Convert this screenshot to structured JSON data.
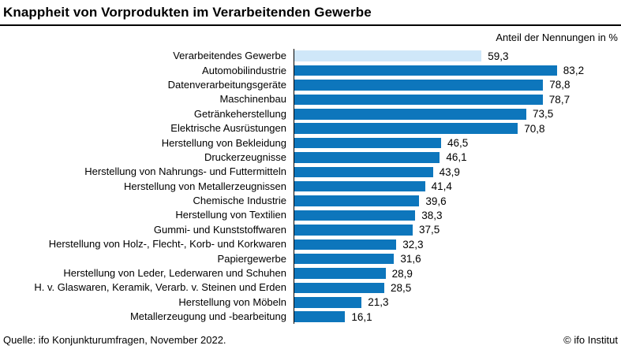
{
  "header": {
    "title": "Knappheit von Vorprodukten im Verarbeitenden Gewerbe"
  },
  "subtitle": "Anteil der Nennungen in %",
  "footer": {
    "source": "Quelle: ifo Konjunkturumfragen, November 2022.",
    "copyright": "© ifo Institut"
  },
  "colors": {
    "bar": "#0d76bc",
    "highlight_bar": "#cfe7f9",
    "rule": "#000000",
    "text": "#000000"
  },
  "chart_data": {
    "type": "bar",
    "orientation": "horizontal",
    "title": "Knappheit von Vorprodukten im Verarbeitenden Gewerbe",
    "xlabel": "Anteil der Nennungen in %",
    "xlim": [
      0,
      100
    ],
    "grid": false,
    "legend": "none",
    "highlight_category": "Verarbeitendes Gewerbe",
    "rows": [
      {
        "label": "Verarbeitendes Gewerbe",
        "value": 59.3,
        "value_label": "59,3",
        "highlight": true
      },
      {
        "label": "Automobilindustrie",
        "value": 83.2,
        "value_label": "83,2",
        "highlight": false
      },
      {
        "label": "Datenverarbeitungsgeräte",
        "value": 78.8,
        "value_label": "78,8",
        "highlight": false
      },
      {
        "label": "Maschinenbau",
        "value": 78.7,
        "value_label": "78,7",
        "highlight": false
      },
      {
        "label": "Getränkeherstellung",
        "value": 73.5,
        "value_label": "73,5",
        "highlight": false
      },
      {
        "label": "Elektrische Ausrüstungen",
        "value": 70.8,
        "value_label": "70,8",
        "highlight": false
      },
      {
        "label": "Herstellung von Bekleidung",
        "value": 46.5,
        "value_label": "46,5",
        "highlight": false
      },
      {
        "label": "Druckerzeugnisse",
        "value": 46.1,
        "value_label": "46,1",
        "highlight": false
      },
      {
        "label": "Herstellung von Nahrungs- und Futtermitteln",
        "value": 43.9,
        "value_label": "43,9",
        "highlight": false
      },
      {
        "label": "Herstellung von Metallerzeugnissen",
        "value": 41.4,
        "value_label": "41,4",
        "highlight": false
      },
      {
        "label": "Chemische Industrie",
        "value": 39.6,
        "value_label": "39,6",
        "highlight": false
      },
      {
        "label": "Herstellung von Textilien",
        "value": 38.3,
        "value_label": "38,3",
        "highlight": false
      },
      {
        "label": "Gummi- und Kunststoffwaren",
        "value": 37.5,
        "value_label": "37,5",
        "highlight": false
      },
      {
        "label": "Herstellung von Holz-, Flecht-, Korb- und Korkwaren",
        "value": 32.3,
        "value_label": "32,3",
        "highlight": false
      },
      {
        "label": "Papiergewerbe",
        "value": 31.6,
        "value_label": "31,6",
        "highlight": false
      },
      {
        "label": "Herstellung von Leder, Lederwaren und Schuhen",
        "value": 28.9,
        "value_label": "28,9",
        "highlight": false
      },
      {
        "label": "H. v. Glaswaren, Keramik, Verarb. v. Steinen und Erden",
        "value": 28.5,
        "value_label": "28,5",
        "highlight": false
      },
      {
        "label": "Herstellung von Möbeln",
        "value": 21.3,
        "value_label": "21,3",
        "highlight": false
      },
      {
        "label": "Metallerzeugung und -bearbeitung",
        "value": 16.1,
        "value_label": "16,1",
        "highlight": false
      }
    ]
  }
}
